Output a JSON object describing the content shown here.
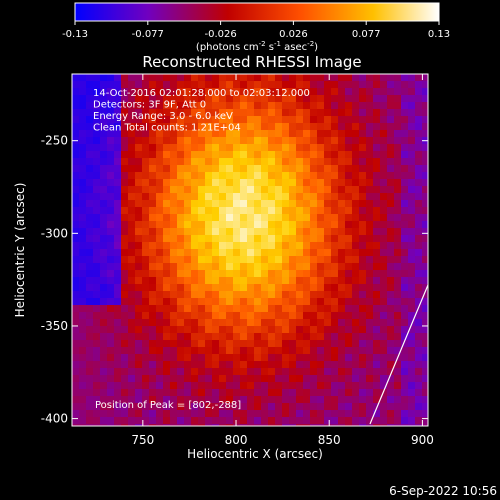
{
  "chart_data": {
    "type": "heatmap",
    "title": "Reconstructed RHESSI Image",
    "xlabel": "Heliocentric X (arcsec)",
    "ylabel": "Heliocentric Y (arcsec)",
    "xlim": [
      712,
      903
    ],
    "ylim": [
      -404,
      -214
    ],
    "x_ticks": [
      750,
      800,
      850,
      900
    ],
    "y_ticks": [
      -250,
      -300,
      -350,
      -400
    ],
    "colorbar": {
      "min": -0.13,
      "max": 0.13,
      "ticks": [
        "-0.13",
        "-0.077",
        "-0.026",
        "0.026",
        "0.077",
        "0.13"
      ],
      "label_main": "(photons cm",
      "label_exp1": "-2",
      "label_mid1": " s",
      "label_exp2": "-1",
      "label_mid2": " asec",
      "label_exp3": "-2",
      "label_end": ")",
      "colormap": [
        "#0000ff",
        "#7000c0",
        "#c00000",
        "#ff6000",
        "#ffd000",
        "#ffffff"
      ]
    },
    "annotations": [
      "14-Oct-2016 02:01:28.000 to 02:03:12.000",
      "Detectors: 3F 9F, Att 0",
      "Energy Range: 3.0 - 6.0 keV",
      "Clean    Total counts: 1.21E+04"
    ],
    "peak": {
      "label": "Position of Peak = [802,-288]",
      "x": 802,
      "y": -288,
      "value": 0.13
    },
    "grid": false
  },
  "footer": {
    "date": "6-Sep-2022 10:56"
  }
}
